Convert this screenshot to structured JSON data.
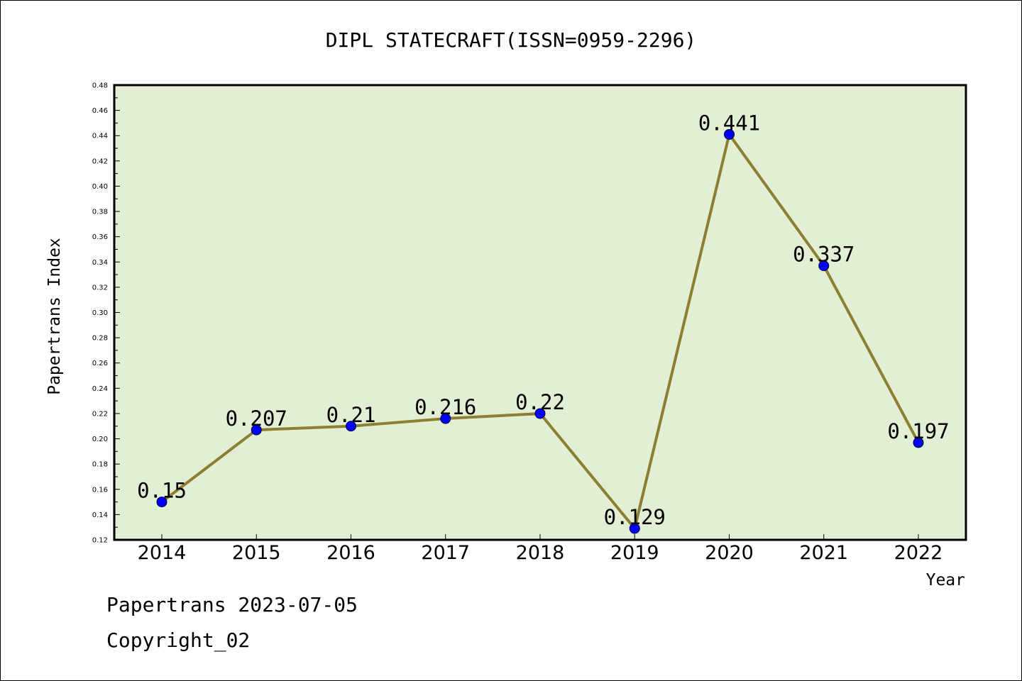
{
  "chart_data": {
    "type": "line",
    "title": "DIPL STATECRAFT(ISSN=0959-2296)",
    "xlabel": "Year",
    "ylabel": "Papertrans Index",
    "categories": [
      "2014",
      "2015",
      "2016",
      "2017",
      "2018",
      "2019",
      "2020",
      "2021",
      "2022"
    ],
    "values": [
      0.15,
      0.207,
      0.21,
      0.216,
      0.22,
      0.129,
      0.441,
      0.337,
      0.197
    ],
    "data_labels": [
      "0.15",
      "0.207",
      "0.21",
      "0.216",
      "0.22",
      "0.129",
      "0.441",
      "0.337",
      "0.197"
    ],
    "ylim": [
      0.12,
      0.48
    ],
    "yticks": [
      "0.12",
      "0.14",
      "0.16",
      "0.18",
      "0.20",
      "0.22",
      "0.24",
      "0.26",
      "0.28",
      "0.30",
      "0.32",
      "0.34",
      "0.36",
      "0.38",
      "0.40",
      "0.42",
      "0.44",
      "0.46",
      "0.48"
    ],
    "grid": false,
    "colors": {
      "plot_background": "#e2efd5",
      "line": "#8c7f32",
      "marker": "#0000ff"
    }
  },
  "footer": {
    "line1": "Papertrans 2023-07-05",
    "line2": "Copyright_02"
  }
}
